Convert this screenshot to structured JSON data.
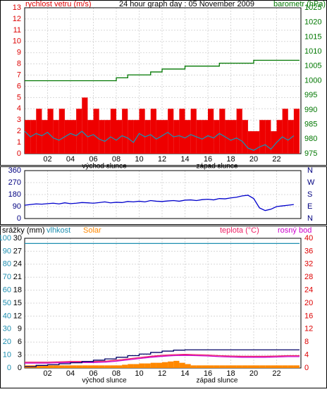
{
  "chart_data": [
    {
      "type": "combo",
      "title": "24 hour graph day : 05 November 2009",
      "ylabel": "rychlost vetru (m/s)",
      "y2label": "barometr (hPa)",
      "ycolor": "#dd0000",
      "y2color": "#007700",
      "ylim": [
        0,
        13
      ],
      "yticks": [
        0,
        1,
        2,
        3,
        4,
        5,
        6,
        7,
        8,
        9,
        10,
        11,
        12,
        13
      ],
      "y2lim": [
        975,
        1025
      ],
      "y2ticks": [
        975,
        980,
        985,
        990,
        995,
        1000,
        1005,
        1010,
        1015,
        1020,
        1025
      ],
      "xlim": [
        0,
        24
      ],
      "xticks": [
        {
          "value": 2,
          "label": "02"
        },
        {
          "value": 4,
          "label": "04"
        },
        {
          "value": 6,
          "label": "06"
        },
        {
          "value": 8,
          "label": "08"
        },
        {
          "value": 10,
          "label": "10"
        },
        {
          "value": 12,
          "label": "12"
        },
        {
          "value": 14,
          "label": "14"
        },
        {
          "value": 16,
          "label": "16"
        },
        {
          "value": 18,
          "label": "18"
        },
        {
          "value": 20,
          "label": "20"
        },
        {
          "value": 22,
          "label": "22"
        }
      ],
      "annotations": [
        "východ slunce",
        "západ slunce"
      ],
      "grid": true,
      "series": [
        {
          "type": "bar",
          "color": "#ee0000",
          "axis": "y",
          "x": [
            0,
            0.5,
            1,
            1.5,
            2,
            2.5,
            3,
            3.5,
            4,
            4.5,
            5,
            5.5,
            6,
            6.5,
            7,
            7.5,
            8,
            8.5,
            9,
            9.5,
            10,
            10.5,
            11,
            11.5,
            12,
            12.5,
            13,
            13.5,
            14,
            14.5,
            15,
            15.5,
            16,
            16.5,
            17,
            17.5,
            18,
            18.5,
            19,
            19.5,
            20,
            20.5,
            21,
            21.5,
            22,
            22.5,
            23,
            23.5
          ],
          "values": [
            3,
            3,
            4,
            3,
            4,
            3,
            4,
            3,
            3,
            4,
            5,
            3,
            4,
            3,
            3,
            4,
            3,
            4,
            3,
            3,
            4,
            3,
            4,
            3,
            3,
            4,
            3,
            4,
            3,
            4,
            3,
            3,
            4,
            3,
            4,
            3,
            3,
            4,
            3,
            2,
            2,
            3,
            3,
            2,
            3,
            4,
            3,
            4
          ]
        },
        {
          "type": "line",
          "color": "#1f8fb0",
          "axis": "y",
          "x": [
            0,
            0.5,
            1,
            1.5,
            2,
            2.5,
            3,
            3.5,
            4,
            4.5,
            5,
            5.5,
            6,
            6.5,
            7,
            7.5,
            8,
            8.5,
            9,
            9.5,
            10,
            10.5,
            11,
            11.5,
            12,
            12.5,
            13,
            13.5,
            14,
            14.5,
            15,
            15.5,
            16,
            16.5,
            17,
            17.5,
            18,
            18.5,
            19,
            19.5,
            20,
            20.5,
            21,
            21.5,
            22,
            22.5,
            23,
            23.5
          ],
          "values": [
            2,
            1.5,
            1.8,
            1.6,
            1.9,
            1.4,
            1.2,
            1.5,
            1.8,
            1.6,
            2,
            1.5,
            1.7,
            1.3,
            1.1,
            1.5,
            1.2,
            1.6,
            1.4,
            1,
            1.8,
            1.5,
            1.7,
            1.3,
            1.6,
            1.9,
            1.5,
            1.6,
            1.4,
            1.7,
            1.5,
            1.3,
            1.6,
            1.4,
            1.8,
            1.5,
            1.2,
            1.4,
            1.1,
            0.5,
            0.3,
            0.6,
            0.8,
            0.4,
            1,
            1.5,
            1.2,
            1.6
          ]
        },
        {
          "type": "step",
          "color": "#007700",
          "axis": "y2",
          "x": [
            0,
            1,
            2,
            3,
            4,
            5,
            6,
            7,
            8,
            9,
            10,
            11,
            12,
            13,
            14,
            15,
            16,
            17,
            18,
            19,
            20,
            21,
            22,
            23,
            24
          ],
          "values": [
            1000,
            1000,
            1000,
            1000,
            1000,
            1000,
            1000,
            1000,
            1001,
            1002,
            1002,
            1003,
            1004,
            1004,
            1005,
            1005,
            1005,
            1006,
            1006,
            1006,
            1007,
            1007,
            1007,
            1007,
            1007
          ]
        }
      ]
    },
    {
      "type": "line",
      "ycolor": "#000080",
      "ylim": [
        0,
        360
      ],
      "yticks": [
        0,
        90,
        180,
        270,
        360
      ],
      "y2lim": [
        0,
        360
      ],
      "y2ticks": [
        {
          "value": 0,
          "label": "N"
        },
        {
          "value": 90,
          "label": "E"
        },
        {
          "value": 180,
          "label": "S"
        },
        {
          "value": 270,
          "label": "W"
        },
        {
          "value": 360,
          "label": "N"
        }
      ],
      "grid": true,
      "series": [
        {
          "type": "line",
          "color": "#0000cc",
          "axis": "y",
          "x": [
            0,
            0.5,
            1,
            1.5,
            2,
            2.5,
            3,
            3.5,
            4,
            4.5,
            5,
            5.5,
            6,
            6.5,
            7,
            7.5,
            8,
            8.5,
            9,
            9.5,
            10,
            10.5,
            11,
            11.5,
            12,
            12.5,
            13,
            13.5,
            14,
            14.5,
            15,
            15.5,
            16,
            16.5,
            17,
            17.5,
            18,
            18.5,
            19,
            19.5,
            20,
            20.5,
            21,
            21.5,
            22,
            22.5,
            23,
            23.5
          ],
          "values": [
            100,
            105,
            110,
            108,
            112,
            115,
            110,
            118,
            112,
            115,
            120,
            118,
            115,
            120,
            125,
            118,
            122,
            120,
            128,
            125,
            130,
            125,
            135,
            130,
            128,
            132,
            135,
            130,
            138,
            140,
            135,
            142,
            145,
            140,
            150,
            148,
            155,
            160,
            170,
            175,
            150,
            80,
            60,
            70,
            90,
            95,
            100,
            105
          ]
        }
      ]
    },
    {
      "type": "combo",
      "ylabel": "srážky (mm)",
      "ycolor": "#1f8fb0",
      "y3color": "#000000",
      "y2color": "#dd0000",
      "ylim": [
        0,
        100
      ],
      "yticks": [
        0,
        10,
        20,
        30,
        40,
        50,
        60,
        70,
        80,
        90,
        100
      ],
      "y3lim": [
        0,
        30
      ],
      "y3ticks": [
        0,
        3,
        6,
        9,
        12,
        15,
        18,
        21,
        24,
        27,
        30
      ],
      "y2lim": [
        0,
        40
      ],
      "y2ticks": [
        0,
        4,
        8,
        12,
        16,
        20,
        24,
        28,
        32,
        36,
        40
      ],
      "xlim": [
        0,
        24
      ],
      "xticks": [
        {
          "value": 2,
          "label": "02"
        },
        {
          "value": 4,
          "label": "04"
        },
        {
          "value": 6,
          "label": "06"
        },
        {
          "value": 8,
          "label": "08"
        },
        {
          "value": 10,
          "label": "10"
        },
        {
          "value": 12,
          "label": "12"
        },
        {
          "value": 14,
          "label": "14"
        },
        {
          "value": 16,
          "label": "16"
        },
        {
          "value": 18,
          "label": "18"
        },
        {
          "value": 20,
          "label": "20"
        },
        {
          "value": 22,
          "label": "22"
        }
      ],
      "annotations": [
        "východ slunce",
        "západ slunce"
      ],
      "grid": true,
      "series": [
        {
          "name": "vlhkost",
          "type": "line",
          "color": "#1f8fb0",
          "axis": "y",
          "x": [
            0,
            1,
            2,
            3,
            4,
            5,
            6,
            7,
            8,
            9,
            10,
            11,
            12,
            13,
            14,
            15,
            16,
            17,
            18,
            19,
            20,
            21,
            22,
            23,
            24
          ],
          "values": [
            96,
            96,
            96,
            96,
            96,
            96,
            96,
            96,
            96,
            96,
            96,
            96,
            96,
            96,
            96,
            96,
            96,
            96,
            96,
            96,
            96,
            96,
            96,
            96,
            96
          ]
        },
        {
          "name": "Solar",
          "type": "bar",
          "color": "#ff8800",
          "axis": "y",
          "x": [
            0,
            0.5,
            1,
            1.5,
            2,
            2.5,
            3,
            3.5,
            4,
            4.5,
            5,
            5.5,
            6,
            6.5,
            7,
            7.5,
            8,
            8.5,
            9,
            9.5,
            10,
            10.5,
            11,
            11.5,
            12,
            12.5,
            13,
            13.5,
            14,
            14.5,
            15,
            15.5,
            16,
            16.5,
            17,
            17.5,
            18,
            18.5,
            19,
            19.5,
            20,
            20.5,
            21,
            21.5,
            22,
            22.5,
            23,
            23.5
          ],
          "values": [
            2,
            2,
            2,
            2,
            2,
            2,
            2,
            2,
            2,
            2,
            2,
            2,
            2,
            2,
            2,
            2,
            2,
            2.5,
            3,
            3,
            3.5,
            3.5,
            4,
            4,
            4.5,
            5,
            5.5,
            4,
            3,
            2,
            2,
            2,
            2,
            2,
            2,
            2,
            2,
            2,
            2,
            2,
            2,
            2,
            2,
            2,
            2,
            2,
            2,
            2
          ]
        },
        {
          "name": "teplota (°C)",
          "type": "line",
          "color": "#ee2266",
          "axis": "y2",
          "x": [
            0,
            1,
            2,
            3,
            4,
            5,
            6,
            7,
            8,
            9,
            10,
            11,
            12,
            13,
            14,
            15,
            16,
            17,
            18,
            19,
            20,
            21,
            22,
            23,
            24
          ],
          "values": [
            1.8,
            1.8,
            1.8,
            1.9,
            2,
            2,
            2,
            2.1,
            2.4,
            2.8,
            3.2,
            3.6,
            3.9,
            4.1,
            4.2,
            4.1,
            4,
            3.8,
            3.7,
            3.6,
            3.6,
            3.6,
            3.7,
            3.8,
            3.8
          ]
        },
        {
          "name": "rosný bod",
          "type": "line",
          "color": "#cc00cc",
          "axis": "y2",
          "x": [
            0,
            1,
            2,
            3,
            4,
            5,
            6,
            7,
            8,
            9,
            10,
            11,
            12,
            13,
            14,
            15,
            16,
            17,
            18,
            19,
            20,
            21,
            22,
            23,
            24
          ],
          "values": [
            1.5,
            1.5,
            1.5,
            1.6,
            1.7,
            1.7,
            1.7,
            1.8,
            2.1,
            2.5,
            2.9,
            3.3,
            3.6,
            3.8,
            3.9,
            3.8,
            3.7,
            3.5,
            3.4,
            3.3,
            3.3,
            3.3,
            3.4,
            3.5,
            3.5
          ]
        },
        {
          "type": "step",
          "color": "#000066",
          "axis": "y2",
          "x": [
            0,
            1,
            2,
            3,
            4,
            5,
            6,
            7,
            8,
            9,
            10,
            11,
            12,
            13,
            14,
            15,
            16,
            17,
            18,
            19,
            20,
            21,
            22,
            23,
            24
          ],
          "values": [
            0.4,
            0.8,
            1,
            1.3,
            1.6,
            2,
            2.4,
            2.8,
            3.3,
            3.8,
            4.3,
            4.8,
            5.2,
            5.5,
            5.6,
            5.6,
            5.6,
            5.6,
            5.6,
            5.6,
            5.6,
            5.6,
            5.6,
            5.6,
            5.6
          ]
        }
      ]
    }
  ]
}
